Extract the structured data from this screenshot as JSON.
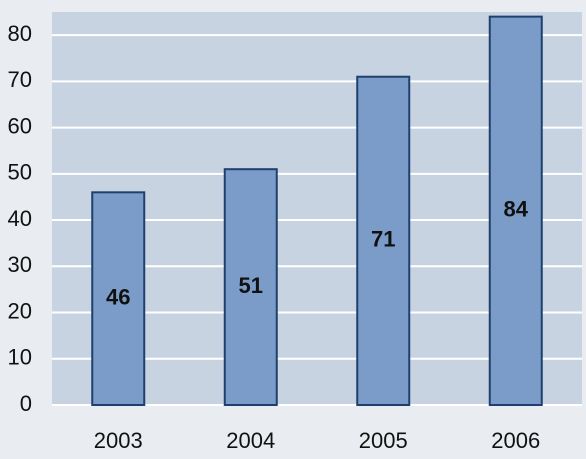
{
  "chart_data": {
    "type": "bar",
    "categories": [
      "2003",
      "2004",
      "2005",
      "2006"
    ],
    "values": [
      46,
      51,
      71,
      84
    ],
    "color": "#7b9cc9",
    "ylim": [
      0,
      85
    ],
    "yticks": [
      0,
      10,
      20,
      30,
      40,
      50,
      60,
      70,
      80
    ],
    "grid": true
  }
}
